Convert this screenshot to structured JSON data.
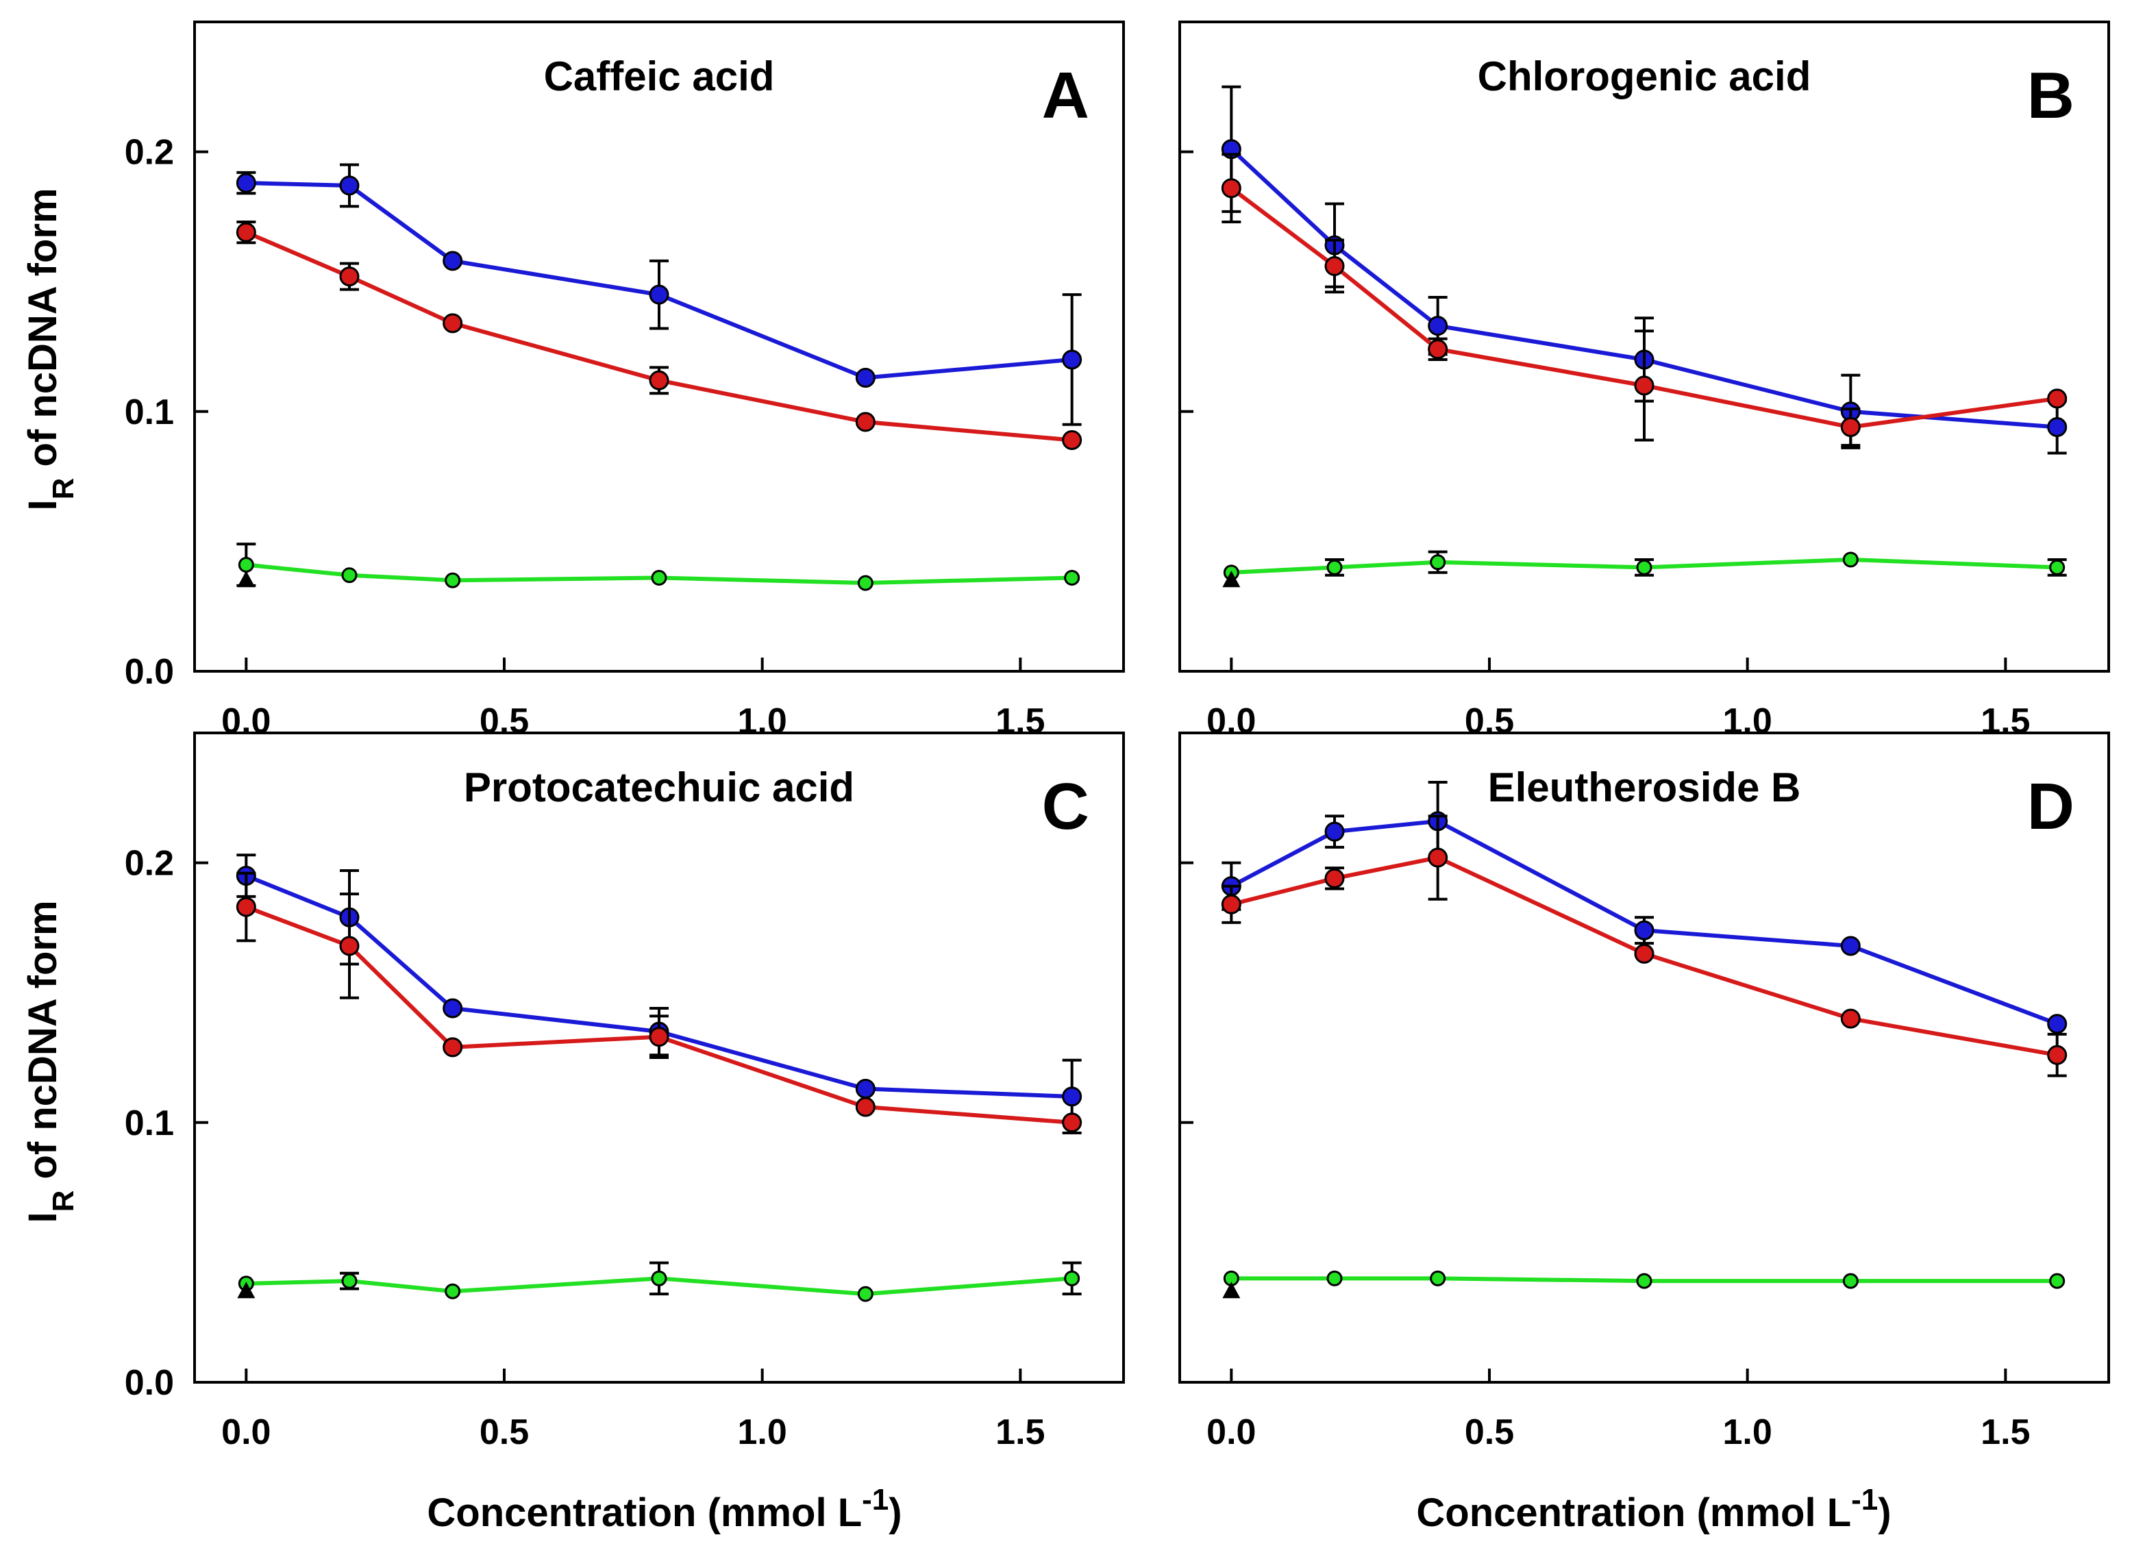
{
  "chart_data": [
    {
      "type": "line",
      "panel_letter": "A",
      "title": "Caffeic acid",
      "xlabel": "Concentration  (mmol L",
      "xlabel_sup": "-1",
      "xlabel_close": ")",
      "ylabel": "I",
      "ylabel_sub": "R",
      "ylabel_rest": " of ncDNA form",
      "xlim": [
        -0.1,
        1.7
      ],
      "ylim": [
        0.0,
        0.25
      ],
      "x_ticks": [
        "0.0",
        "0.5",
        "1.0",
        "1.5"
      ],
      "y_ticks": [
        "0.0",
        "0.1",
        "0.2"
      ],
      "x": [
        0.0,
        0.2,
        0.4,
        0.8,
        1.2,
        1.6
      ],
      "series": [
        {
          "name": "blue",
          "color": "#1a1ad6",
          "values": [
            0.188,
            0.187,
            0.158,
            0.145,
            0.113,
            0.12
          ],
          "err": [
            0.004,
            0.008,
            0.0,
            0.013,
            0.0,
            0.025
          ]
        },
        {
          "name": "red",
          "color": "#d61a1a",
          "values": [
            0.169,
            0.152,
            0.134,
            0.112,
            0.096,
            0.089
          ],
          "err": [
            0.004,
            0.005,
            0.0,
            0.005,
            0.0,
            0.0
          ]
        },
        {
          "name": "green",
          "color": "#22e022",
          "values": [
            0.041,
            0.037,
            0.035,
            0.036,
            0.034,
            0.036
          ],
          "err": [
            0.008,
            0.0,
            0.0,
            0.0,
            0.0,
            0.0
          ]
        }
      ],
      "control": {
        "x": 0.0,
        "y": 0.035
      }
    },
    {
      "type": "line",
      "panel_letter": "B",
      "title": "Chlorogenic acid",
      "xlabel": "Concentration  (mmol L",
      "xlabel_sup": "-1",
      "xlabel_close": ")",
      "ylabel": "",
      "ylabel_sub": "",
      "ylabel_rest": "",
      "xlim": [
        -0.1,
        1.7
      ],
      "ylim": [
        0.0,
        0.25
      ],
      "x_ticks": [
        "0.0",
        "0.5",
        "1.0",
        "1.5"
      ],
      "y_ticks": [
        "",
        "",
        ""
      ],
      "x": [
        0.0,
        0.2,
        0.4,
        0.8,
        1.2,
        1.6
      ],
      "series": [
        {
          "name": "blue",
          "color": "#1a1ad6",
          "values": [
            0.201,
            0.164,
            0.133,
            0.12,
            0.1,
            0.094
          ],
          "err": [
            0.024,
            0.016,
            0.011,
            0.016,
            0.014,
            0.01
          ]
        },
        {
          "name": "red",
          "color": "#d61a1a",
          "values": [
            0.186,
            0.156,
            0.124,
            0.11,
            0.094,
            0.105
          ],
          "err": [
            0.013,
            0.01,
            0.004,
            0.021,
            0.007,
            0.0
          ]
        },
        {
          "name": "green",
          "color": "#22e022",
          "values": [
            0.038,
            0.04,
            0.042,
            0.04,
            0.043,
            0.04
          ],
          "err": [
            0.0,
            0.003,
            0.004,
            0.003,
            0.0,
            0.003
          ]
        }
      ],
      "control": {
        "x": 0.0,
        "y": 0.035
      }
    },
    {
      "type": "line",
      "panel_letter": "C",
      "title": "Protocatechuic acid",
      "xlabel": "",
      "xlabel_sup": "",
      "xlabel_close": "",
      "ylabel": "I",
      "ylabel_sub": "R",
      "ylabel_rest": " of ncDNA form",
      "xlim": [
        -0.1,
        1.7
      ],
      "ylim": [
        0.0,
        0.25
      ],
      "x_ticks": [
        "0.0",
        "0.5",
        "1.0",
        "1.5"
      ],
      "y_ticks": [
        "0.0",
        "0.1",
        "0.2"
      ],
      "x": [
        0.0,
        0.2,
        0.4,
        0.8,
        1.2,
        1.6
      ],
      "series": [
        {
          "name": "blue",
          "color": "#1a1ad6",
          "values": [
            0.195,
            0.179,
            0.144,
            0.135,
            0.113,
            0.11
          ],
          "err": [
            0.008,
            0.018,
            0.0,
            0.009,
            0.0,
            0.014
          ]
        },
        {
          "name": "red",
          "color": "#d61a1a",
          "values": [
            0.183,
            0.168,
            0.129,
            0.133,
            0.106,
            0.1
          ],
          "err": [
            0.013,
            0.02,
            0.0,
            0.008,
            0.0,
            0.0
          ]
        },
        {
          "name": "green",
          "color": "#22e022",
          "values": [
            0.038,
            0.039,
            0.035,
            0.04,
            0.034,
            0.04
          ],
          "err": [
            0.0,
            0.003,
            0.0,
            0.006,
            0.0,
            0.006
          ]
        }
      ],
      "control": {
        "x": 0.0,
        "y": 0.035
      }
    },
    {
      "type": "line",
      "panel_letter": "D",
      "title": "Eleutheroside B",
      "xlabel": "",
      "xlabel_sup": "",
      "xlabel_close": "",
      "ylabel": "",
      "ylabel_sub": "",
      "ylabel_rest": "",
      "xlim": [
        -0.1,
        1.7
      ],
      "ylim": [
        0.0,
        0.25
      ],
      "x_ticks": [
        "0.0",
        "0.5",
        "1.0",
        "1.5"
      ],
      "y_ticks": [
        "",
        "",
        ""
      ],
      "x": [
        0.0,
        0.2,
        0.4,
        0.8,
        1.2,
        1.6
      ],
      "series": [
        {
          "name": "blue",
          "color": "#1a1ad6",
          "values": [
            0.191,
            0.212,
            0.216,
            0.174,
            0.168,
            0.138
          ],
          "err": [
            0.009,
            0.006,
            0.015,
            0.005,
            0.0,
            0.0
          ]
        },
        {
          "name": "red",
          "color": "#d61a1a",
          "values": [
            0.184,
            0.194,
            0.202,
            0.165,
            0.14,
            0.126
          ],
          "err": [
            0.007,
            0.004,
            0.016,
            0.0,
            0.0,
            0.008
          ]
        },
        {
          "name": "green",
          "color": "#22e022",
          "values": [
            0.04,
            0.04,
            0.04,
            0.039,
            0.039,
            0.039
          ],
          "err": [
            0.0,
            0.0,
            0.0,
            0.0,
            0.0,
            0.0
          ]
        }
      ],
      "control": {
        "x": 0.0,
        "y": 0.035
      }
    }
  ]
}
